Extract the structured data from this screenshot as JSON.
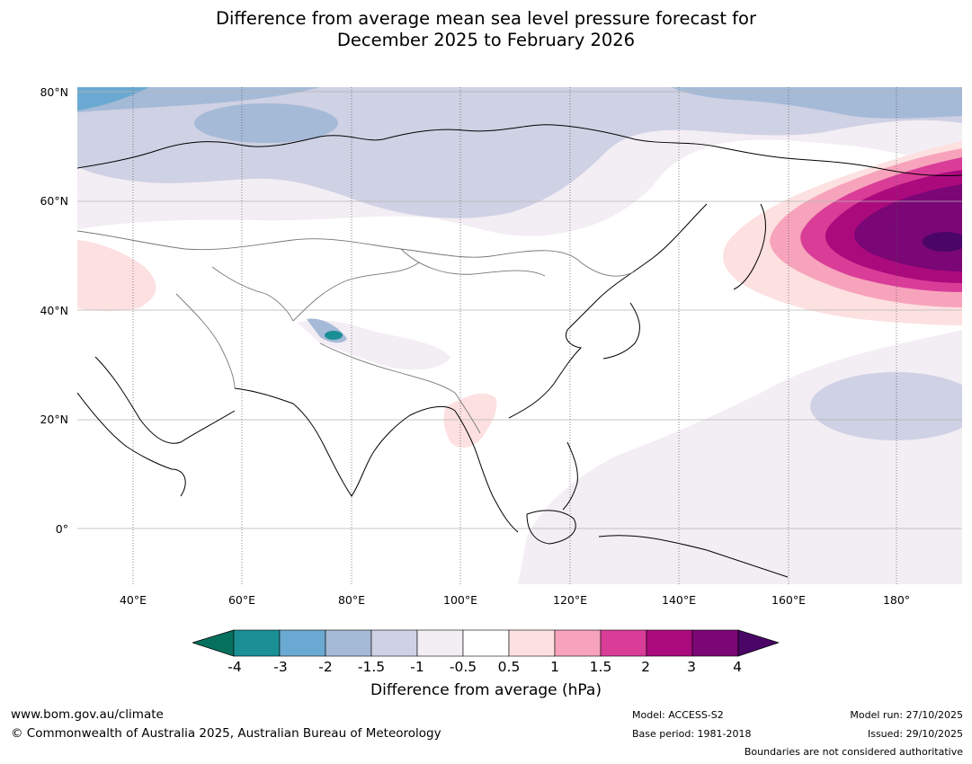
{
  "title": {
    "line1": "Difference from average mean sea level pressure forecast for",
    "line2": "December 2025 to February 2026"
  },
  "map": {
    "lat_labels": [
      "80°N",
      "60°N",
      "40°N",
      "20°N",
      "0°"
    ],
    "lon_labels": [
      "40°E",
      "60°E",
      "80°E",
      "100°E",
      "120°E",
      "140°E",
      "160°E",
      "180°"
    ],
    "lon_range_deg": [
      30,
      192
    ],
    "lat_range_deg": [
      -10,
      81
    ]
  },
  "colorbar": {
    "ticks": [
      "-4",
      "-3",
      "-2",
      "-1.5",
      "-1",
      "-0.5",
      "0.5",
      "1",
      "1.5",
      "2",
      "3",
      "4"
    ],
    "colors": [
      "#1a8f95",
      "#6aaad2",
      "#a5bad7",
      "#cfd1e4",
      "#f3edf4",
      "#ffffff",
      "#fde0e0",
      "#f7a3bc",
      "#d93d98",
      "#ab0a7d",
      "#7b0676"
    ],
    "extend_low_color": "#06705e",
    "extend_high_color": "#4a0567",
    "label": "Difference from average (hPa)"
  },
  "footer": {
    "website": "www.bom.gov.au/climate",
    "copyright": "© Commonwealth of Australia 2025, Australian Bureau of Meteorology",
    "model": "Model: ACCESS-S2",
    "base_period": "Base period: 1981-2018",
    "model_run": "Model run: 27/10/2025",
    "issued": "Issued: 29/10/2025",
    "boundaries_note": "Boundaries are not considered authoritative"
  }
}
